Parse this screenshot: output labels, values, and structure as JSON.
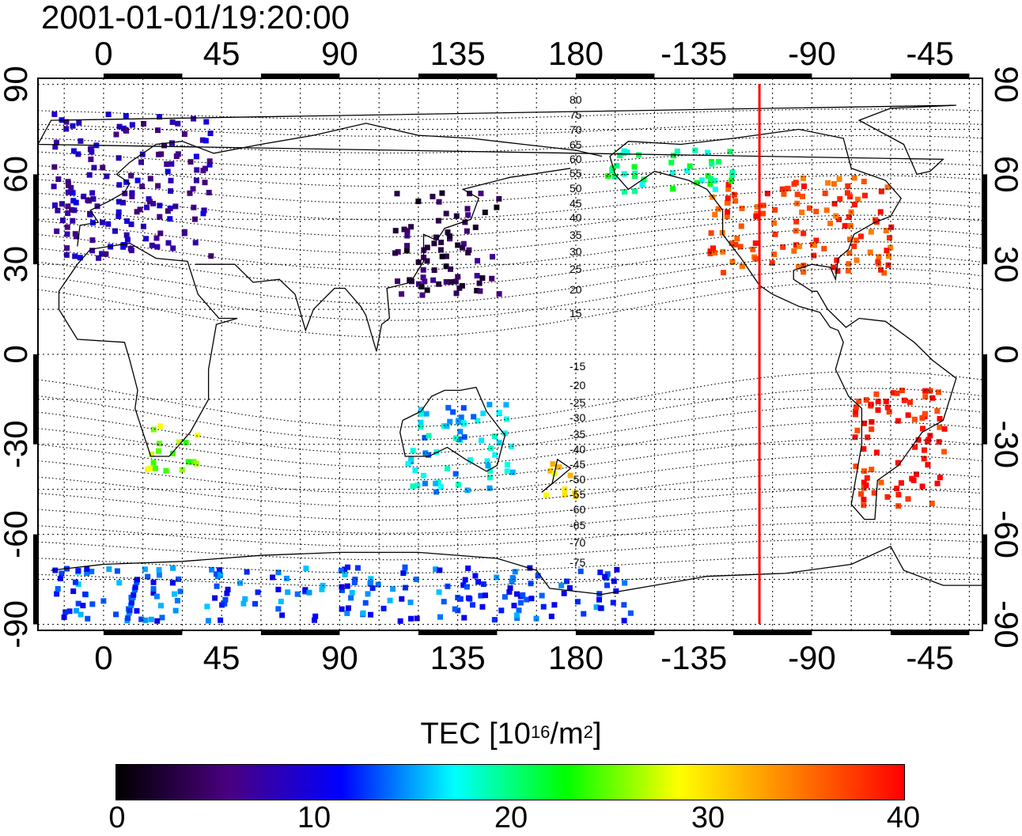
{
  "timestamp": "2001-01-01/19:20:00",
  "map": {
    "lon_ticks_top": [
      "0",
      "45",
      "90",
      "135",
      "180",
      "-135",
      "-90",
      "-45"
    ],
    "lon_ticks_bottom": [
      "0",
      "45",
      "90",
      "135",
      "180",
      "-135",
      "-90",
      "-45"
    ],
    "lat_ticks": [
      "90",
      "60",
      "30",
      "0",
      "-30",
      "-60",
      "-90"
    ],
    "lon_range": [
      -25,
      335
    ],
    "lat_range": [
      -92,
      92
    ],
    "grid": "dotted, every 15 degrees",
    "terminator_longitude": -110,
    "terminator_color": "#ff0000",
    "magnetic_latitude_labels": [
      "80",
      "75",
      "70",
      "65",
      "60",
      "55",
      "50",
      "45",
      "40",
      "35",
      "30",
      "25",
      "20",
      "15",
      "-15",
      "-20",
      "-25",
      "-30",
      "-35",
      "-40",
      "-45",
      "-50",
      "-55",
      "-60",
      "-65",
      "-70",
      "-75"
    ]
  },
  "colorbar": {
    "label_main": "TEC  [10",
    "label_exp1": "16",
    "label_mid": "/m",
    "label_exp2": "2",
    "label_end": "]",
    "tick_labels": [
      "0",
      "10",
      "20",
      "30",
      "40"
    ],
    "range": [
      0,
      40
    ],
    "colors": [
      "#000000",
      "#4a0080",
      "#0000ff",
      "#00ffff",
      "#00ff00",
      "#ffff00",
      "#ff8000",
      "#ff0000"
    ]
  },
  "tec_regions": [
    {
      "name": "europe",
      "lon": [
        -20,
        40
      ],
      "lat": [
        33,
        82
      ],
      "tec": 8
    },
    {
      "name": "north-america",
      "lon": [
        -130,
        -60
      ],
      "lat": [
        28,
        60
      ],
      "tec": 37
    },
    {
      "name": "south-america",
      "lon": [
        -75,
        -40
      ],
      "lat": [
        -50,
        -10
      ],
      "tec": 39
    },
    {
      "name": "southern-africa",
      "lon": [
        15,
        35
      ],
      "lat": [
        -38,
        -22
      ],
      "tec": 26
    },
    {
      "name": "east-asia",
      "lon": [
        110,
        150
      ],
      "lat": [
        20,
        55
      ],
      "tec": 4
    },
    {
      "name": "australia",
      "lon": [
        115,
        155
      ],
      "lat": [
        -45,
        -15
      ],
      "tec": 16
    },
    {
      "name": "new-zealand",
      "lon": [
        165,
        180
      ],
      "lat": [
        -47,
        -35
      ],
      "tec": 30
    },
    {
      "name": "antarctica",
      "lon": [
        -20,
        200
      ],
      "lat": [
        -88,
        -70
      ],
      "tec": 13
    },
    {
      "name": "alaska-canada",
      "lon": [
        -170,
        -120
      ],
      "lat": [
        55,
        70
      ],
      "tec": 20
    }
  ]
}
